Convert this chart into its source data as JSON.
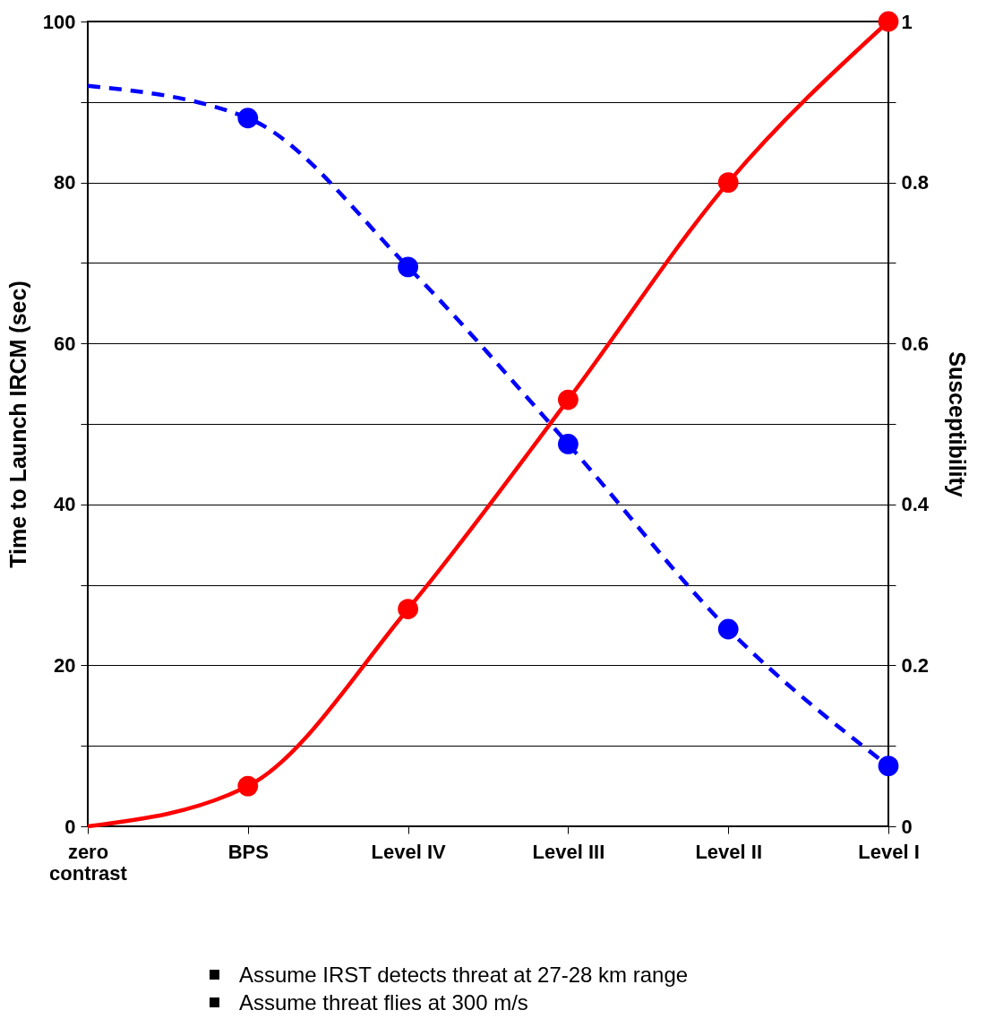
{
  "chart_data": {
    "type": "line",
    "ylabel": "Time to Launch IRCM (sec)",
    "y2label": "Susceptibility",
    "categories": [
      "zero contrast",
      "BPS",
      "Level IV",
      "Level III",
      "Level II",
      "Level I"
    ],
    "series": [
      {
        "type": "line",
        "color": "#0000ff",
        "line_style": "dashed",
        "values": [
          92,
          88,
          69.5,
          47.5,
          24.5,
          7.5
        ]
      },
      {
        "type": "scatter",
        "color": "#0000ff",
        "marker": "circle",
        "values": [
          null,
          88,
          69.5,
          47.5,
          24.5,
          7.5
        ]
      },
      {
        "type": "line",
        "axis": "y2",
        "color": "#ff0000",
        "line_style": "solid",
        "values": [
          0,
          0.05,
          0.27,
          0.53,
          0.8,
          1.0
        ]
      },
      {
        "type": "scatter",
        "axis": "y2",
        "color": "#ff0000",
        "marker": "circle",
        "values": [
          null,
          0.05,
          0.27,
          0.53,
          0.8,
          1.0
        ]
      }
    ],
    "ylim": [
      0,
      100
    ],
    "yticks": [
      0,
      {
        "value": 10,
        "label": null
      },
      20,
      {
        "value": 30,
        "label": null
      },
      40,
      {
        "value": 50,
        "label": null
      },
      60,
      {
        "value": 70,
        "label": null
      },
      80,
      {
        "value": 90,
        "label": null
      },
      100
    ],
    "y2lim": [
      0,
      1
    ],
    "y2ticks": [
      0,
      {
        "value": 0.1,
        "label": null
      },
      0.2,
      {
        "value": 0.3,
        "label": null
      },
      0.4,
      {
        "value": 0.5,
        "label": null
      },
      0.6,
      {
        "value": 0.7,
        "label": null
      },
      0.8,
      {
        "value": 0.9,
        "label": null
      },
      1
    ],
    "grid": "y",
    "annotations": [
      "Assume IRST detects threat at 27-28 km range",
      "Assume threat flies at 300 m/s"
    ]
  }
}
